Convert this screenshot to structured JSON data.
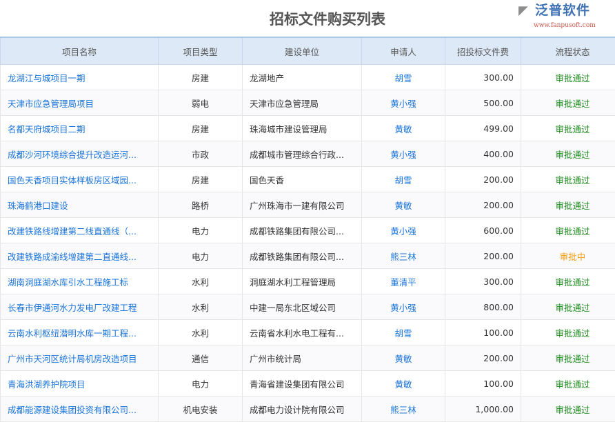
{
  "title": "招标文件购买列表",
  "columns": [
    "项目名称",
    "项目类型",
    "建设单位",
    "申请人",
    "招投标文件费",
    "流程状态"
  ],
  "rows": [
    [
      "龙湖江与城项目一期",
      "房建",
      "龙湖地产",
      "胡雪",
      "300.00",
      "审批通过"
    ],
    [
      "天津市应急管理局项目",
      "弱电",
      "天津市应急管理局",
      "黄小强",
      "500.00",
      "审批通过"
    ],
    [
      "名都天府城项目二期",
      "房建",
      "珠海城市建设管理局",
      "黄敏",
      "499.00",
      "审批通过"
    ],
    [
      "成都沙河环境综合提升改造运河...",
      "市政",
      "成都城市管理综合行政...",
      "黄小强",
      "400.00",
      "审批通过"
    ],
    [
      "国色天香项目实体样板房区域园...",
      "房建",
      "国色天香",
      "胡雪",
      "200.00",
      "审批通过"
    ],
    [
      "珠海鹤港口建设",
      "路桥",
      "广州珠海市一建有限公司",
      "黄敏",
      "200.00",
      "审批通过"
    ],
    [
      "改建铁路线增建第二线直通线（...",
      "电力",
      "成都铁路集团有限公司...",
      "黄小强",
      "600.00",
      "审批通过"
    ],
    [
      "改建铁路成渝线增建第二直通线...",
      "电力",
      "成都铁路集团有限公司...",
      "熊三林",
      "200.00",
      "审批中"
    ],
    [
      "湖南洞庭湖水库引水工程施工标",
      "水利",
      "洞庭湖水利工程管理局",
      "董清平",
      "300.00",
      "审批通过"
    ],
    [
      "长春市伊通河水力发电厂改建工程",
      "水利",
      "中建一局东北区域公司",
      "黄小强",
      "800.00",
      "审批通过"
    ],
    [
      "云南水利枢纽潜明水库一期工程...",
      "水利",
      "云南省水利水电工程有...",
      "胡雪",
      "100.00",
      "审批通过"
    ],
    [
      "广州市天河区统计局机房改造项目",
      "通信",
      "广州市统计局",
      "黄敏",
      "200.00",
      "审批通过"
    ],
    [
      "青海洪湖养护院项目",
      "电力",
      "青海省建设集团有限公司",
      "黄敏",
      "100.00",
      "审批通过"
    ],
    [
      "成都能源建设集团投资有限公司...",
      "机电安装",
      "成都电力设计院有限公司",
      "熊三林",
      "1,000.00",
      "审批通过"
    ]
  ],
  "watermark": {
    "text": "泛普软件",
    "url": "www.fanpusoft.com"
  }
}
